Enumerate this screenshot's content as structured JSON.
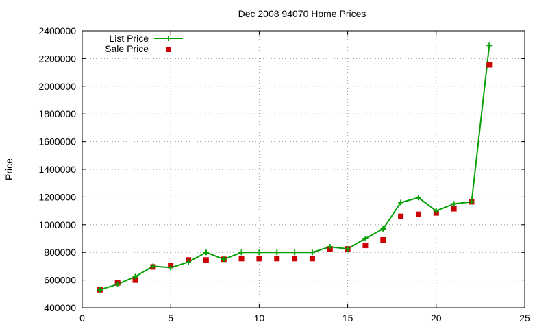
{
  "chart_data": {
    "type": "line",
    "title": "Dec 2008 94070 Home Prices",
    "xlabel": "",
    "ylabel": "Price",
    "xlim": [
      0,
      25
    ],
    "ylim": [
      400000,
      2400000
    ],
    "x_ticks": [
      0,
      5,
      10,
      15,
      20,
      25
    ],
    "y_ticks": [
      400000,
      600000,
      800000,
      1000000,
      1200000,
      1400000,
      1600000,
      1800000,
      2000000,
      2200000,
      2400000
    ],
    "x_tick_labels": [
      "0",
      "5",
      "10",
      "15",
      "20",
      "25"
    ],
    "y_tick_labels": [
      "400000",
      "600000",
      "800000",
      "1000000",
      "1200000",
      "1400000",
      "1600000",
      "1800000",
      "2000000",
      "2200000",
      "2400000"
    ],
    "grid": true,
    "legend_position": "top-left",
    "x": [
      1,
      2,
      3,
      4,
      5,
      6,
      7,
      8,
      9,
      10,
      11,
      12,
      13,
      14,
      15,
      16,
      17,
      18,
      19,
      20,
      21,
      22,
      23
    ],
    "series": [
      {
        "name": "List Price",
        "style": "line-with-plus-markers",
        "color": "#00a000",
        "values": [
          530000,
          570000,
          625000,
          700000,
          690000,
          730000,
          800000,
          750000,
          800000,
          800000,
          800000,
          800000,
          800000,
          840000,
          825000,
          900000,
          970000,
          1160000,
          1195000,
          1100000,
          1150000,
          1165000,
          2295000
        ]
      },
      {
        "name": "Sale Price",
        "style": "square-markers",
        "color": "#cc0000",
        "values": [
          530000,
          580000,
          600000,
          695000,
          705000,
          745000,
          745000,
          750000,
          755000,
          755000,
          755000,
          755000,
          755000,
          825000,
          825000,
          850000,
          890000,
          1060000,
          1075000,
          1085000,
          1115000,
          1165000,
          2155000
        ]
      }
    ]
  }
}
